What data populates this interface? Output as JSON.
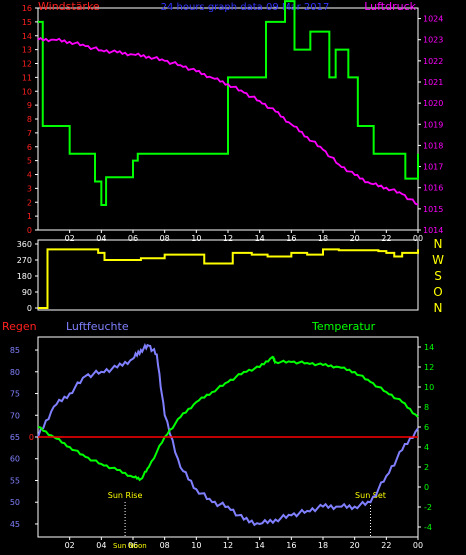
{
  "chart_data": [
    {
      "type": "line",
      "panel": "top",
      "title": "24 hours graph data  09 Mar 2017",
      "left_axis_label": "Windstärke",
      "right_axis_label": "Luftdruck",
      "x_ticks": [
        "02",
        "04",
        "06",
        "08",
        "10",
        "12",
        "14",
        "16",
        "18",
        "20",
        "22",
        "00"
      ],
      "x_range": [
        0,
        24
      ],
      "left_ylim": [
        0,
        16
      ],
      "left_ticks": [
        "0",
        "1",
        "2",
        "3",
        "4",
        "5",
        "6",
        "7",
        "8",
        "9",
        "10",
        "11",
        "12",
        "13",
        "14",
        "15",
        "16"
      ],
      "right_ylim": [
        1014,
        1024.5
      ],
      "right_ticks": [
        "1014",
        "1015",
        "1016",
        "1017",
        "1018",
        "1019",
        "1020",
        "1021",
        "1022",
        "1023",
        "1024"
      ],
      "colors": {
        "wind": "#00ff00",
        "pressure": "#ff00ff",
        "left_axis": "#ff2020",
        "right_axis": "#ff00ff",
        "title": "#3333ff"
      },
      "series": [
        {
          "key": "wind",
          "axis": "left",
          "step": true,
          "x": [
            0,
            0.3,
            2,
            3.6,
            4,
            4.3,
            6,
            6.3,
            12,
            14.4,
            15.6,
            16.2,
            17.2,
            18.4,
            18.8,
            19.6,
            20.2,
            21.2,
            23.2,
            24
          ],
          "y": [
            15,
            7.5,
            5.5,
            3.5,
            1.8,
            3.8,
            5,
            5.5,
            11,
            15,
            16.5,
            13,
            14.3,
            11,
            13,
            11,
            7.5,
            5.5,
            3.7,
            5.5
          ]
        },
        {
          "key": "pressure",
          "axis": "right",
          "step": false,
          "x": [
            0,
            1,
            2,
            3,
            4,
            5,
            6,
            7,
            8,
            9,
            10,
            11,
            12,
            13,
            14,
            15,
            16,
            17,
            18,
            19,
            20,
            21,
            22,
            23,
            24
          ],
          "y": [
            1023.0,
            1023.0,
            1022.9,
            1022.7,
            1022.5,
            1022.4,
            1022.3,
            1022.2,
            1022.0,
            1021.8,
            1021.5,
            1021.2,
            1020.9,
            1020.5,
            1020.1,
            1019.6,
            1019.0,
            1018.4,
            1017.8,
            1017.1,
            1016.6,
            1016.2,
            1016.0,
            1015.7,
            1015.2
          ]
        }
      ]
    },
    {
      "type": "line",
      "panel": "middle",
      "series_label": "Wind direction",
      "x_range": [
        0,
        24
      ],
      "ylim": [
        0,
        360
      ],
      "y_ticks": [
        "0",
        "90",
        "180",
        "270",
        "360"
      ],
      "compass_labels": [
        "N",
        "W",
        "S",
        "O",
        "N"
      ],
      "colors": {
        "direction": "#ffff00",
        "axis": "#ffffff",
        "compass": "#ffff00"
      },
      "series": [
        {
          "key": "direction",
          "step": true,
          "x": [
            0,
            0.4,
            0.6,
            3.8,
            4.2,
            6.5,
            8.0,
            10.5,
            12.0,
            12.3,
            13.5,
            14.5,
            16.0,
            17.0,
            18.0,
            19.0,
            21.5,
            22.0,
            22.5,
            23.0,
            24.0
          ],
          "y": [
            0,
            0,
            330,
            310,
            270,
            280,
            300,
            250,
            250,
            310,
            300,
            290,
            310,
            300,
            330,
            325,
            320,
            310,
            290,
            310,
            330
          ]
        }
      ]
    },
    {
      "type": "line",
      "panel": "bottom",
      "left_axis_label": "Regen",
      "humidity_label": "Luftfeuchte",
      "temperature_label": "Temperatur",
      "x_ticks": [
        "02",
        "04",
        "06",
        "08",
        "10",
        "12",
        "14",
        "16",
        "18",
        "20",
        "22",
        "00"
      ],
      "x_range": [
        0,
        24
      ],
      "humidity_ylim": [
        42,
        88
      ],
      "humidity_ticks": [
        "45",
        "50",
        "55",
        "60",
        "65",
        "70",
        "75",
        "80",
        "85"
      ],
      "rain_tick": "0",
      "temperature_ylim": [
        -5,
        15
      ],
      "temperature_ticks": [
        "-4",
        "-2",
        "0",
        "2",
        "4",
        "6",
        "8",
        "10",
        "12",
        "14"
      ],
      "annotations": [
        {
          "text": "Sun Rise",
          "x": 5.5
        },
        {
          "text": "Sun Set",
          "x": 21.0
        },
        {
          "text": "Sun Noon",
          "x": 5.8
        }
      ],
      "colors": {
        "humidity": "#8080ff",
        "temperature": "#00ff00",
        "rain": "#ff0000",
        "regen_label": "#ff2020",
        "humidity_axis": "#8080ff",
        "temperature_axis": "#00ff00"
      },
      "series": [
        {
          "key": "humidity",
          "axis": "humidity",
          "x": [
            0,
            1,
            2,
            3,
            4,
            5,
            6,
            6.5,
            7.0,
            7.5,
            8.0,
            9.0,
            10.0,
            11.0,
            12.0,
            13.0,
            14.0,
            15.0,
            16.0,
            17.0,
            18.0,
            19.0,
            20.0,
            21.0,
            22.0,
            23.0,
            24.0
          ],
          "y": [
            65,
            72,
            75,
            79,
            80,
            81,
            83,
            85,
            86,
            84,
            70,
            58,
            53,
            50,
            49,
            46,
            45,
            46,
            47,
            48,
            49,
            49,
            49,
            50,
            56,
            62,
            67
          ]
        },
        {
          "key": "temperature",
          "axis": "temperature",
          "x": [
            0,
            1,
            2,
            3,
            4,
            5,
            6,
            6.5,
            7,
            8,
            9,
            10,
            11,
            12,
            13,
            14,
            14.8,
            15,
            16,
            17,
            18,
            19,
            20,
            21,
            22,
            23,
            24
          ],
          "y": [
            6.0,
            5.0,
            4.0,
            3.0,
            2.3,
            1.7,
            1.0,
            0.8,
            2.0,
            5.0,
            7.0,
            8.5,
            9.5,
            10.5,
            11.5,
            12.0,
            13.0,
            12.5,
            12.5,
            12.4,
            12.2,
            12.0,
            11.5,
            10.5,
            9.5,
            8.5,
            7.0
          ]
        },
        {
          "key": "rain",
          "axis": "rain",
          "x": [
            0,
            24
          ],
          "y": [
            0,
            0
          ]
        }
      ]
    }
  ]
}
